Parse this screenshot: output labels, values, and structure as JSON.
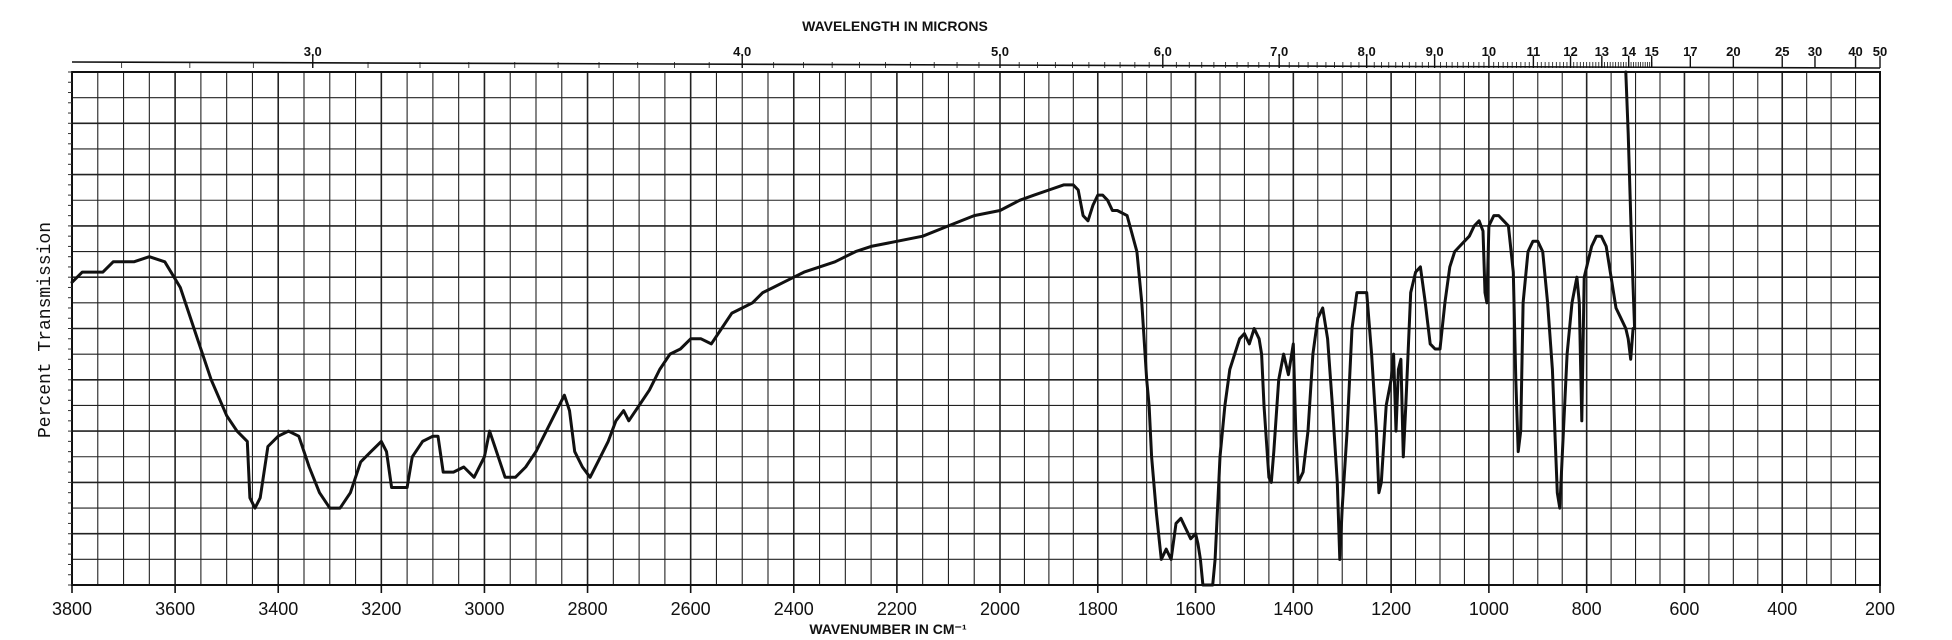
{
  "chart_data": {
    "type": "line",
    "title": "",
    "top_axis_title": "WAVELENGTH IN MICRONS",
    "xlabel": "WAVENUMBER IN CM⁻¹",
    "ylabel": "Percent Transmission",
    "xlim": [
      3800,
      200
    ],
    "ylim": [
      0,
      100
    ],
    "y_ticks_labeled": false,
    "grid": true,
    "legend": "none",
    "bottom_ticks": [
      3800,
      3600,
      3400,
      3200,
      3000,
      2800,
      2600,
      2400,
      2200,
      2000,
      1800,
      1600,
      1400,
      1200,
      1000,
      800,
      600,
      400,
      200
    ],
    "bottom_tick_labels": [
      "3800",
      "3600",
      "3400",
      "3200",
      "3000",
      "2800",
      "2600",
      "2400",
      "2200",
      "2000",
      "1800",
      "1600",
      "1400",
      "1200",
      "1000",
      "800",
      "600",
      "400",
      "200"
    ],
    "top_ticks": [
      {
        "label": "3.0",
        "wavenumber": 3333
      },
      {
        "label": "4.0",
        "wavenumber": 2500
      },
      {
        "label": "5.0",
        "wavenumber": 2000
      },
      {
        "label": "6.0",
        "wavenumber": 1667
      },
      {
        "label": "7.0",
        "wavenumber": 1429
      },
      {
        "label": "8.0",
        "wavenumber": 1250
      },
      {
        "label": "9.0",
        "wavenumber": 1111
      },
      {
        "label": "10",
        "wavenumber": 1000
      },
      {
        "label": "11",
        "wavenumber": 909
      },
      {
        "label": "12",
        "wavenumber": 833
      },
      {
        "label": "13",
        "wavenumber": 769
      },
      {
        "label": "14",
        "wavenumber": 714
      },
      {
        "label": "15",
        "wavenumber": 667
      },
      {
        "label": "17",
        "wavenumber": 588
      },
      {
        "label": "20",
        "wavenumber": 500
      },
      {
        "label": "25",
        "wavenumber": 400
      },
      {
        "label": "30",
        "wavenumber": 333
      },
      {
        "label": "40",
        "wavenumber": 250
      },
      {
        "label": "50",
        "wavenumber": 200
      }
    ],
    "series": [
      {
        "color": "#111111",
        "points": [
          [
            3800,
            59
          ],
          [
            3780,
            61
          ],
          [
            3740,
            61
          ],
          [
            3720,
            63
          ],
          [
            3680,
            63
          ],
          [
            3650,
            64
          ],
          [
            3620,
            63
          ],
          [
            3590,
            58
          ],
          [
            3560,
            49
          ],
          [
            3530,
            40
          ],
          [
            3500,
            33
          ],
          [
            3480,
            30
          ],
          [
            3460,
            28
          ],
          [
            3455,
            17
          ],
          [
            3445,
            15
          ],
          [
            3435,
            17
          ],
          [
            3420,
            27
          ],
          [
            3400,
            29
          ],
          [
            3380,
            30
          ],
          [
            3360,
            29
          ],
          [
            3340,
            23
          ],
          [
            3320,
            18
          ],
          [
            3300,
            15
          ],
          [
            3280,
            15
          ],
          [
            3260,
            18
          ],
          [
            3240,
            24
          ],
          [
            3220,
            26
          ],
          [
            3200,
            28
          ],
          [
            3190,
            26
          ],
          [
            3180,
            19
          ],
          [
            3160,
            19
          ],
          [
            3150,
            19
          ],
          [
            3140,
            25
          ],
          [
            3120,
            28
          ],
          [
            3100,
            29
          ],
          [
            3090,
            29
          ],
          [
            3080,
            22
          ],
          [
            3060,
            22
          ],
          [
            3040,
            23
          ],
          [
            3020,
            21
          ],
          [
            3000,
            25
          ],
          [
            2990,
            30
          ],
          [
            2980,
            27
          ],
          [
            2960,
            21
          ],
          [
            2940,
            21
          ],
          [
            2920,
            23
          ],
          [
            2900,
            26
          ],
          [
            2880,
            30
          ],
          [
            2860,
            34
          ],
          [
            2845,
            37
          ],
          [
            2835,
            34
          ],
          [
            2825,
            26
          ],
          [
            2810,
            23
          ],
          [
            2795,
            21
          ],
          [
            2780,
            24
          ],
          [
            2760,
            28
          ],
          [
            2745,
            32
          ],
          [
            2730,
            34
          ],
          [
            2720,
            32
          ],
          [
            2700,
            35
          ],
          [
            2680,
            38
          ],
          [
            2660,
            42
          ],
          [
            2640,
            45
          ],
          [
            2620,
            46
          ],
          [
            2600,
            48
          ],
          [
            2580,
            48
          ],
          [
            2560,
            47
          ],
          [
            2540,
            50
          ],
          [
            2520,
            53
          ],
          [
            2500,
            54
          ],
          [
            2480,
            55
          ],
          [
            2460,
            57
          ],
          [
            2440,
            58
          ],
          [
            2420,
            59
          ],
          [
            2400,
            60
          ],
          [
            2380,
            61
          ],
          [
            2350,
            62
          ],
          [
            2320,
            63
          ],
          [
            2300,
            64
          ],
          [
            2280,
            65
          ],
          [
            2250,
            66
          ],
          [
            2200,
            67
          ],
          [
            2150,
            68
          ],
          [
            2100,
            70
          ],
          [
            2050,
            72
          ],
          [
            2000,
            73
          ],
          [
            1960,
            75
          ],
          [
            1930,
            76
          ],
          [
            1900,
            77
          ],
          [
            1870,
            78
          ],
          [
            1850,
            78
          ],
          [
            1840,
            77
          ],
          [
            1830,
            72
          ],
          [
            1820,
            71
          ],
          [
            1810,
            74
          ],
          [
            1800,
            76
          ],
          [
            1790,
            76
          ],
          [
            1780,
            75
          ],
          [
            1770,
            73
          ],
          [
            1760,
            73
          ],
          [
            1740,
            72
          ],
          [
            1720,
            65
          ],
          [
            1710,
            55
          ],
          [
            1700,
            40
          ],
          [
            1695,
            35
          ],
          [
            1690,
            25
          ],
          [
            1680,
            14
          ],
          [
            1670,
            5
          ],
          [
            1660,
            7
          ],
          [
            1650,
            5
          ],
          [
            1640,
            12
          ],
          [
            1630,
            13
          ],
          [
            1620,
            11
          ],
          [
            1610,
            9
          ],
          [
            1600,
            10
          ],
          [
            1595,
            8
          ],
          [
            1590,
            5
          ],
          [
            1585,
            0
          ],
          [
            1575,
            0
          ],
          [
            1565,
            0
          ],
          [
            1560,
            5
          ],
          [
            1550,
            25
          ],
          [
            1540,
            35
          ],
          [
            1530,
            42
          ],
          [
            1520,
            45
          ],
          [
            1510,
            48
          ],
          [
            1500,
            49
          ],
          [
            1490,
            47
          ],
          [
            1480,
            50
          ],
          [
            1470,
            48
          ],
          [
            1465,
            45
          ],
          [
            1460,
            35
          ],
          [
            1450,
            21
          ],
          [
            1445,
            20
          ],
          [
            1440,
            26
          ],
          [
            1430,
            40
          ],
          [
            1420,
            45
          ],
          [
            1410,
            41
          ],
          [
            1400,
            47
          ],
          [
            1395,
            30
          ],
          [
            1390,
            20
          ],
          [
            1380,
            22
          ],
          [
            1370,
            30
          ],
          [
            1360,
            45
          ],
          [
            1350,
            52
          ],
          [
            1340,
            54
          ],
          [
            1330,
            48
          ],
          [
            1320,
            35
          ],
          [
            1310,
            20
          ],
          [
            1305,
            5
          ],
          [
            1300,
            15
          ],
          [
            1290,
            30
          ],
          [
            1280,
            50
          ],
          [
            1270,
            57
          ],
          [
            1260,
            57
          ],
          [
            1250,
            57
          ],
          [
            1240,
            45
          ],
          [
            1230,
            30
          ],
          [
            1225,
            18
          ],
          [
            1220,
            20
          ],
          [
            1210,
            35
          ],
          [
            1200,
            40
          ],
          [
            1195,
            45
          ],
          [
            1190,
            30
          ],
          [
            1185,
            42
          ],
          [
            1180,
            44
          ],
          [
            1175,
            25
          ],
          [
            1170,
            35
          ],
          [
            1160,
            57
          ],
          [
            1150,
            61
          ],
          [
            1140,
            62
          ],
          [
            1130,
            55
          ],
          [
            1120,
            47
          ],
          [
            1110,
            46
          ],
          [
            1100,
            46
          ],
          [
            1090,
            55
          ],
          [
            1080,
            62
          ],
          [
            1070,
            65
          ],
          [
            1060,
            66
          ],
          [
            1050,
            67
          ],
          [
            1040,
            68
          ],
          [
            1030,
            70
          ],
          [
            1020,
            71
          ],
          [
            1012,
            69
          ],
          [
            1008,
            57
          ],
          [
            1004,
            55
          ],
          [
            1000,
            70
          ],
          [
            990,
            72
          ],
          [
            980,
            72
          ],
          [
            970,
            71
          ],
          [
            960,
            70
          ],
          [
            950,
            61
          ],
          [
            945,
            40
          ],
          [
            940,
            26
          ],
          [
            935,
            30
          ],
          [
            930,
            55
          ],
          [
            920,
            65
          ],
          [
            910,
            67
          ],
          [
            900,
            67
          ],
          [
            890,
            65
          ],
          [
            880,
            55
          ],
          [
            870,
            42
          ],
          [
            860,
            18
          ],
          [
            855,
            15
          ],
          [
            850,
            25
          ],
          [
            840,
            45
          ],
          [
            830,
            55
          ],
          [
            820,
            60
          ],
          [
            815,
            55
          ],
          [
            810,
            32
          ],
          [
            805,
            60
          ],
          [
            800,
            62
          ],
          [
            790,
            66
          ],
          [
            780,
            68
          ],
          [
            770,
            68
          ],
          [
            760,
            66
          ],
          [
            750,
            60
          ],
          [
            740,
            54
          ],
          [
            730,
            52
          ],
          [
            720,
            50
          ],
          [
            715,
            48
          ],
          [
            710,
            44
          ],
          [
            705,
            50
          ]
        ]
      },
      {
        "color": "#111111",
        "points": [
          [
            720,
            100
          ],
          [
            715,
            88
          ],
          [
            710,
            72
          ],
          [
            705,
            58
          ],
          [
            702,
            50
          ]
        ]
      }
    ]
  }
}
